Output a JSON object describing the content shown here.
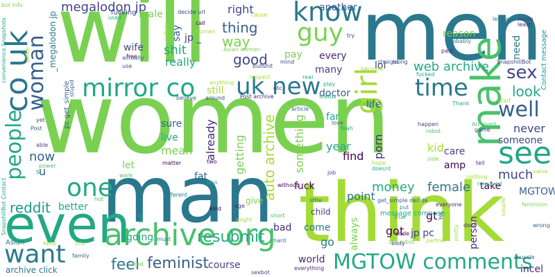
{
  "word_cloud": {
    "palette": [
      "#a5db36",
      "#7ad151",
      "#4ac16d",
      "#22a884",
      "#1f988b",
      "#2a788e",
      "#355f8d",
      "#414487",
      "#482878",
      "#440154"
    ],
    "words": [
      {
        "text": "women",
        "color": "#7ad151"
      },
      {
        "text": "will",
        "color": "#7ad151"
      },
      {
        "text": "men",
        "color": "#2a788e"
      },
      {
        "text": "man",
        "color": "#2a788e"
      },
      {
        "text": "think",
        "color": "#a5db36"
      },
      {
        "text": "even",
        "color": "#22a884"
      },
      {
        "text": "archive org",
        "color": "#4ac16d"
      },
      {
        "text": "make",
        "color": "#4ac16d"
      },
      {
        "text": "mirror co",
        "color": "#22a884"
      },
      {
        "text": "co uk",
        "color": "#2a788e"
      },
      {
        "text": "see",
        "color": "#22a884"
      },
      {
        "text": "know",
        "color": "#2a788e"
      },
      {
        "text": "guy",
        "color": "#7ad151"
      },
      {
        "text": "girl",
        "color": "#a5db36"
      },
      {
        "text": "uk new",
        "color": "#2a788e"
      },
      {
        "text": "MGTOW comments",
        "color": "#22a884"
      },
      {
        "text": "want",
        "color": "#2a788e"
      },
      {
        "text": "one",
        "color": "#22a884"
      },
      {
        "text": "people",
        "color": "#22a884"
      },
      {
        "text": "time",
        "color": "#2a788e"
      },
      {
        "text": "well",
        "color": "#355f8d"
      },
      {
        "text": "woman",
        "color": "#355f8d"
      },
      {
        "text": "resubmit",
        "color": "#22a884"
      },
      {
        "text": "web archive",
        "color": "#22a884"
      },
      {
        "text": "sex",
        "color": "#414487"
      },
      {
        "text": "megalodon jp",
        "color": "#414487"
      },
      {
        "text": "reddit",
        "color": "#1f988b"
      },
      {
        "text": "feminist",
        "color": "#355f8d"
      },
      {
        "text": "feel",
        "color": "#2a788e"
      },
      {
        "text": "look",
        "color": "#22a884"
      },
      {
        "text": "thing",
        "color": "#355f8d"
      },
      {
        "text": "good",
        "color": "#414487"
      },
      {
        "text": "now",
        "color": "#355f8d"
      },
      {
        "text": "auto archive",
        "color": "#a5db36"
      },
      {
        "text": "money",
        "color": "#22a884"
      },
      {
        "text": "female",
        "color": "#2a788e"
      },
      {
        "text": "much",
        "color": "#414487"
      },
      {
        "text": "never",
        "color": "#414487"
      },
      {
        "text": "year",
        "color": "#22a884"
      },
      {
        "text": "shit",
        "color": "#22a884"
      },
      {
        "text": "really",
        "color": "#22a884"
      },
      {
        "text": "way",
        "color": "#7ad151"
      },
      {
        "text": "right",
        "color": "#414487"
      },
      {
        "text": "another",
        "color": "#355f8d"
      },
      {
        "text": "mean",
        "color": "#7ad151"
      },
      {
        "text": "live",
        "color": "#22a884"
      },
      {
        "text": "sure",
        "color": "#355f8d"
      },
      {
        "text": "fat",
        "color": "#355f8d"
      },
      {
        "text": "many",
        "color": "#414487"
      },
      {
        "text": "still",
        "color": "#a5db36"
      },
      {
        "text": "already",
        "color": "#482878"
      },
      {
        "text": "getting",
        "color": "#7ad151"
      },
      {
        "text": "something",
        "color": "#7ad151"
      },
      {
        "text": "lol",
        "color": "#414487"
      },
      {
        "text": "doctor",
        "color": "#355f8d"
      },
      {
        "text": "life",
        "color": "#355f8d"
      },
      {
        "text": "someone",
        "color": "#414487"
      },
      {
        "text": "kid",
        "color": "#a5db36"
      },
      {
        "text": "care",
        "color": "#414487"
      },
      {
        "text": "porn",
        "color": "#482878"
      },
      {
        "text": "find",
        "color": "#440154"
      },
      {
        "text": "amp",
        "color": "#440154"
      },
      {
        "text": "take",
        "color": "#440154"
      },
      {
        "text": "MGTOW",
        "color": "#355f8d"
      },
      {
        "text": "fuck",
        "color": "#440154"
      },
      {
        "text": "point",
        "color": "#2a788e"
      },
      {
        "text": "got",
        "color": "#440154"
      },
      {
        "text": "always",
        "color": "#7ad151"
      },
      {
        "text": "jp pc",
        "color": "#414487"
      },
      {
        "text": "gt",
        "color": "#440154"
      },
      {
        "text": "person",
        "color": "#482878"
      },
      {
        "text": "come",
        "color": "#2a788e"
      },
      {
        "text": "go",
        "color": "#2a788e"
      },
      {
        "text": "child",
        "color": "#414487"
      },
      {
        "text": "bad",
        "color": "#482878"
      },
      {
        "text": "world",
        "color": "#482878"
      },
      {
        "text": "going",
        "color": "#22a884"
      },
      {
        "text": "course",
        "color": "#414487"
      },
      {
        "text": "better",
        "color": "#22a884"
      },
      {
        "text": "u",
        "color": "#355f8d"
      },
      {
        "text": "let",
        "color": "#7ad151"
      },
      {
        "text": "wife",
        "color": "#414487"
      },
      {
        "text": "say",
        "color": "#355f8d"
      },
      {
        "text": "jp _",
        "color": "#414487"
      },
      {
        "text": "male",
        "color": "#7ad151"
      },
      {
        "text": "_megalodon jp",
        "color": "#2a788e"
      },
      {
        "text": "every",
        "color": "#482878"
      },
      {
        "text": "far",
        "color": "#22a884"
      },
      {
        "text": "reason",
        "color": "#7ad151"
      },
      {
        "text": "need",
        "color": "#2a788e"
      },
      {
        "text": "pay",
        "color": "#7ad151"
      },
      {
        "text": "incel",
        "color": "#482878"
      },
      {
        "text": "Asian",
        "color": "#2a788e"
      },
      {
        "text": "archive click",
        "color": "#2a788e"
      },
      {
        "text": "fucking",
        "color": "#414487"
      },
      {
        "text": "give",
        "color": "#7ad151"
      },
      {
        "text": "message compose",
        "color": "#22a884"
      },
      {
        "text": "Contact message",
        "color": "#1f988b"
      },
      {
        "text": "SnapshillBot",
        "color": "#414487"
      },
      {
        "text": "Asian women",
        "color": "#7ad151"
      },
      {
        "text": "human",
        "color": "#a5db36"
      },
      {
        "text": "call",
        "color": "#440154"
      },
      {
        "text": "two",
        "color": "#440154"
      },
      {
        "text": "free",
        "color": "#440154"
      },
      {
        "text": "bot Info",
        "color": "#7ad151"
      },
      {
        "text": "convenience Snapshots",
        "color": "#22a884"
      },
      {
        "text": "SnapshillBot Contact",
        "color": "#22a884"
      },
      {
        "text": "pc get_simple",
        "color": "#355f8d"
      },
      {
        "text": "get_simple decide",
        "color": "#355f8d"
      },
      {
        "text": "decide url",
        "color": "#414487"
      },
      {
        "text": "sex robot",
        "color": "#7ad151"
      },
      {
        "text": "sexbot",
        "color": "#414487"
      },
      {
        "text": "everything",
        "color": "#482878"
      },
      {
        "text": "Chad",
        "color": "#7ad151"
      },
      {
        "text": "family",
        "color": "#355f8d"
      },
      {
        "text": "keep",
        "color": "#a5db36"
      },
      {
        "text": "boy",
        "color": "#a5db36"
      },
      {
        "text": "must",
        "color": "#2a788e"
      },
      {
        "text": "hard",
        "color": "#2a788e"
      },
      {
        "text": "different",
        "color": "#2a788e"
      },
      {
        "text": "hot",
        "color": "#4ac16d"
      },
      {
        "text": "law",
        "color": "#22a884"
      },
      {
        "text": "kind",
        "color": "#440154"
      },
      {
        "text": "age",
        "color": "#482878"
      },
      {
        "text": "might",
        "color": "#a5db36"
      },
      {
        "text": "short",
        "color": "#4ac16d"
      },
      {
        "text": "true",
        "color": "#22a884"
      },
      {
        "text": "put",
        "color": "#1f988b"
      },
      {
        "text": "dude",
        "color": "#440154"
      },
      {
        "text": "body",
        "color": "#414487"
      },
      {
        "text": "partner",
        "color": "#a5db36"
      },
      {
        "text": "pretty",
        "color": "#a5db36"
      },
      {
        "text": "dont",
        "color": "#482878"
      },
      {
        "text": "Yes",
        "color": "#2a788e"
      },
      {
        "text": "everyone",
        "color": "#482878"
      },
      {
        "text": "couple",
        "color": "#a5db36"
      },
      {
        "text": "feminism",
        "color": "#7ad151"
      },
      {
        "text": "wrong",
        "color": "#355f8d"
      },
      {
        "text": "muscle",
        "color": "#355f8d"
      },
      {
        "text": "value",
        "color": "#a5db36"
      },
      {
        "text": "removed",
        "color": "#22a884"
      },
      {
        "text": "nothing",
        "color": "#a5db36"
      },
      {
        "text": "side",
        "color": "#7ad151"
      },
      {
        "text": "tell",
        "color": "#482878"
      },
      {
        "text": "game",
        "color": "#414487"
      },
      {
        "text": "Archived",
        "color": "#4ac16d"
      },
      {
        "text": "robot",
        "color": "#4ac16d"
      },
      {
        "text": "happen",
        "color": "#414487"
      },
      {
        "text": "Thank",
        "color": "#22a884"
      },
      {
        "text": "start",
        "color": "#a5db36"
      },
      {
        "text": "past",
        "color": "#482878"
      },
      {
        "text": "probably",
        "color": "#2a788e"
      },
      {
        "text": "least",
        "color": "#482878"
      },
      {
        "text": "made",
        "color": "#414487"
      },
      {
        "text": "fucked",
        "color": "#22a884"
      },
      {
        "text": "straight",
        "color": "#355f8d"
      },
      {
        "text": "become",
        "color": "#a5db36"
      },
      {
        "text": "using",
        "color": "#414487"
      },
      {
        "text": "try",
        "color": "#414487"
      },
      {
        "text": "lesbian",
        "color": "#2a788e"
      },
      {
        "text": "cause",
        "color": "#a5db36"
      },
      {
        "text": "bullshit",
        "color": "#414487"
      },
      {
        "text": "mind",
        "color": "#414487"
      },
      {
        "text": "real",
        "color": "#22a884"
      },
      {
        "text": "play",
        "color": "#22a884"
      },
      {
        "text": "status",
        "color": "#22a884"
      },
      {
        "text": "article",
        "color": "#355f8d"
      },
      {
        "text": "Post archive",
        "color": "#482878"
      },
      {
        "text": "around",
        "color": "#414487"
      },
      {
        "text": "believe",
        "color": "#355f8d"
      },
      {
        "text": "respect",
        "color": "#a5db36"
      },
      {
        "text": "etc",
        "color": "#482878"
      },
      {
        "text": "anything",
        "color": "#a5db36"
      },
      {
        "text": "love",
        "color": "#355f8d"
      },
      {
        "text": "Yeah",
        "color": "#22a884"
      },
      {
        "text": "hope",
        "color": "#a5db36"
      },
      {
        "text": "doesnt",
        "color": "#22a884"
      },
      {
        "text": "job",
        "color": "#414487"
      },
      {
        "text": "without",
        "color": "#440154"
      },
      {
        "text": "little",
        "color": "#2a788e"
      },
      {
        "text": "less",
        "color": "#22a884"
      },
      {
        "text": "matter",
        "color": "#440154"
      },
      {
        "text": "work",
        "color": "#4ac16d"
      },
      {
        "text": "power",
        "color": "#4ac16d"
      },
      {
        "text": "able",
        "color": "#414487"
      },
      {
        "text": "yet",
        "color": "#414487"
      },
      {
        "text": "Post",
        "color": "#355f8d"
      },
      {
        "text": "stupid",
        "color": "#355f8d"
      },
      {
        "text": "white",
        "color": "#a5db36"
      },
      {
        "text": "use",
        "color": "#414487"
      },
      {
        "text": "actually",
        "color": "#355f8d"
      },
      {
        "text": "used",
        "color": "#22a884"
      },
      {
        "text": "culture",
        "color": "#a5db36"
      },
      {
        "text": "s",
        "color": "#22a884"
      }
    ]
  }
}
